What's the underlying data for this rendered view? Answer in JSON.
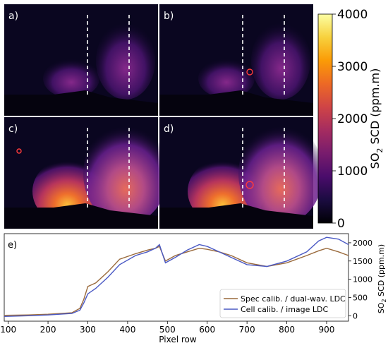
{
  "panels": [
    {
      "label": "a)",
      "has_circle": false,
      "plume": "low"
    },
    {
      "label": "b)",
      "has_circle": true,
      "plume": "low"
    },
    {
      "label": "c)",
      "has_circle": true,
      "plume": "high"
    },
    {
      "label": "d)",
      "has_circle": true,
      "plume": "high"
    }
  ],
  "colorbar": {
    "label_main": "SO",
    "label_sub": "2",
    "label_rest": " SCD (ppm.m)",
    "ticks": [
      "0",
      "1000",
      "2000",
      "3000",
      "4000"
    ],
    "range": [
      0,
      4000
    ],
    "colormap": [
      "#000004",
      "#1b0c41",
      "#4a0c6b",
      "#781c6d",
      "#a52c60",
      "#cf4446",
      "#ed6925",
      "#fb9b06",
      "#f7d13d",
      "#fcffa4"
    ]
  },
  "chart_data": {
    "type": "line",
    "panel_label": "e)",
    "xlabel": "Pixel row",
    "ylabel_main": "SO",
    "ylabel_sub": "2",
    "ylabel_rest": " SCD (ppm.m)",
    "xlim": [
      90,
      955
    ],
    "ylim": [
      -150,
      2250
    ],
    "xticks": [
      100,
      200,
      300,
      400,
      500,
      600,
      700,
      800,
      900
    ],
    "yticks": [
      0,
      500,
      1000,
      1500,
      2000
    ],
    "legend_position": "lower-right",
    "series": [
      {
        "name": "Spec calib. / dual-wav. LDC",
        "color": "#9a6a3c",
        "x": [
          90,
          150,
          200,
          260,
          280,
          290,
          300,
          320,
          350,
          380,
          420,
          450,
          470,
          480,
          495,
          520,
          550,
          580,
          600,
          630,
          660,
          700,
          750,
          800,
          850,
          880,
          900,
          930,
          955
        ],
        "y": [
          10,
          20,
          40,
          80,
          200,
          450,
          800,
          900,
          1200,
          1550,
          1700,
          1800,
          1850,
          1900,
          1500,
          1650,
          1750,
          1850,
          1820,
          1750,
          1650,
          1450,
          1350,
          1450,
          1650,
          1780,
          1850,
          1750,
          1650
        ]
      },
      {
        "name": "Cell calib. / image LDC",
        "color": "#4a59c4",
        "x": [
          90,
          150,
          200,
          260,
          280,
          290,
          300,
          320,
          350,
          380,
          420,
          450,
          470,
          480,
          495,
          520,
          550,
          580,
          600,
          630,
          660,
          700,
          750,
          800,
          850,
          880,
          900,
          930,
          955
        ],
        "y": [
          -20,
          0,
          20,
          60,
          150,
          350,
          600,
          750,
          1050,
          1400,
          1650,
          1750,
          1850,
          1950,
          1450,
          1600,
          1800,
          1950,
          1900,
          1750,
          1600,
          1400,
          1350,
          1500,
          1750,
          2050,
          2150,
          2100,
          1950
        ]
      }
    ]
  }
}
